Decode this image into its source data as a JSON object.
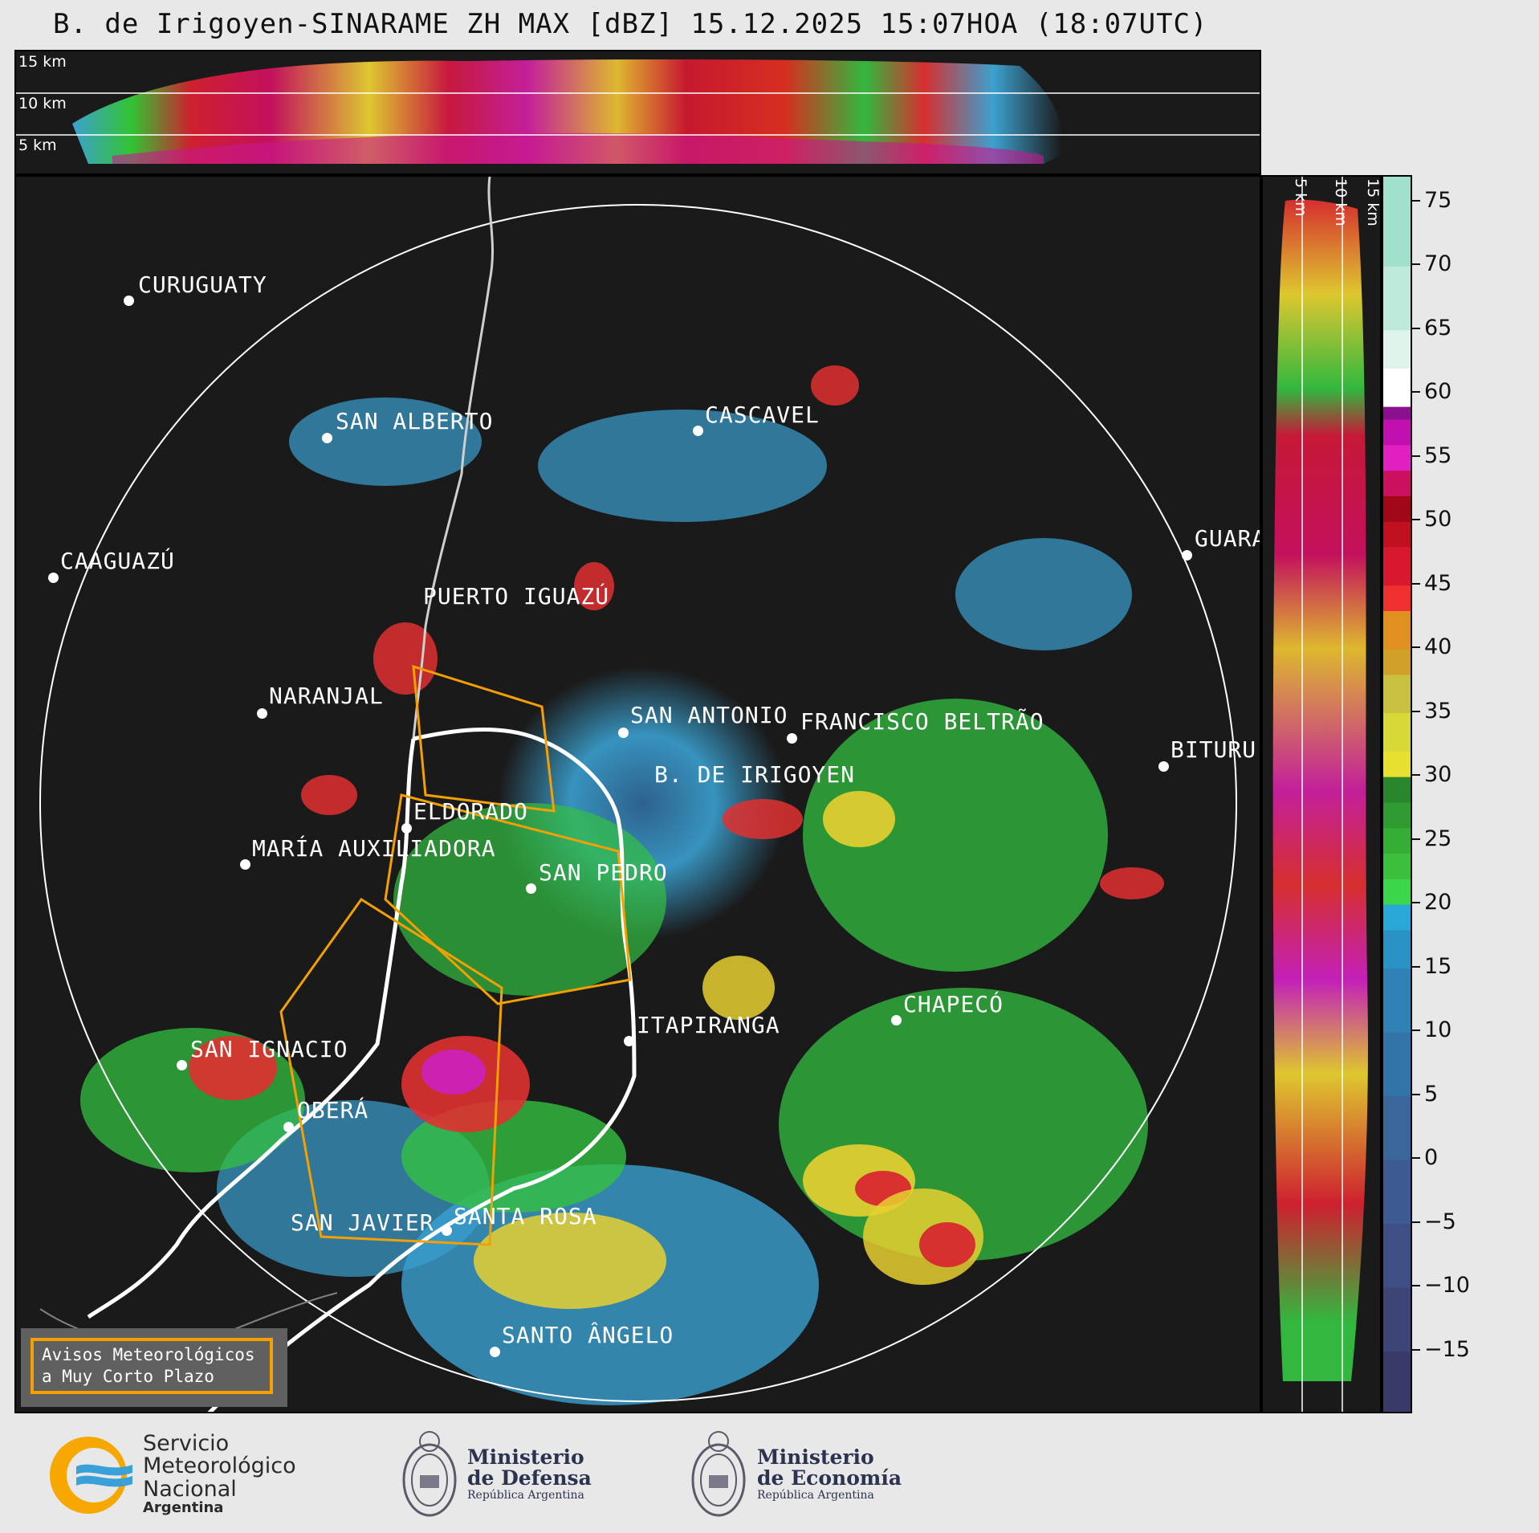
{
  "title": "B. de Irigoyen-SINARAME ZH MAX [dBZ] 15.12.2025 15:07HOA (18:07UTC)",
  "top_panel": {
    "altitudes": [
      "15 km",
      "10 km",
      "5 km"
    ]
  },
  "right_panel": {
    "altitudes": [
      "5 km",
      "10 km",
      "15 km"
    ]
  },
  "colorbar": {
    "unit": "dBZ",
    "ticks": [
      "75",
      "70",
      "65",
      "60",
      "55",
      "50",
      "45",
      "40",
      "35",
      "30",
      "25",
      "20",
      "15",
      "10",
      "5",
      "0",
      "−5",
      "−10",
      "−15"
    ],
    "range": [
      -20,
      77
    ]
  },
  "cities": [
    {
      "name": "CURUGUATY"
    },
    {
      "name": "SAN ALBERTO"
    },
    {
      "name": "CASCAVEL"
    },
    {
      "name": "CAAGUAZÚ"
    },
    {
      "name": "GUARA"
    },
    {
      "name": "PUERTO IGUAZÚ"
    },
    {
      "name": "NARANJAL"
    },
    {
      "name": "SAN ANTONIO"
    },
    {
      "name": "FRANCISCO BELTRÃO"
    },
    {
      "name": "B. DE IRIGOYEN"
    },
    {
      "name": "BITURU"
    },
    {
      "name": "ELDORADO"
    },
    {
      "name": "MARÍA AUXILIADORA"
    },
    {
      "name": "SAN PEDRO"
    },
    {
      "name": "CHAPECÓ"
    },
    {
      "name": "ITAPIRANGA"
    },
    {
      "name": "SAN IGNACIO"
    },
    {
      "name": "OBERÁ"
    },
    {
      "name": "SAN JAVIER"
    },
    {
      "name": "SANTA ROSA"
    },
    {
      "name": "SANTO ÂNGELO"
    }
  ],
  "warning_box": {
    "line1": "Avisos Meteorológicos",
    "line2": "a Muy Corto Plazo"
  },
  "logos": {
    "smn": {
      "line1": "Servicio",
      "line2": "Meteorológico",
      "line3": "Nacional",
      "line4": "Argentina"
    },
    "defensa": {
      "line1": "Ministerio",
      "line2": "de Defensa",
      "line3": "República Argentina"
    },
    "economia": {
      "line1": "Ministerio",
      "line2": "de Economía",
      "line3": "República Argentina"
    }
  },
  "colors": {
    "panel_bg": "#1a1a1a",
    "warning_outline": "#f5a000",
    "page_bg": "#e8e8e8"
  }
}
